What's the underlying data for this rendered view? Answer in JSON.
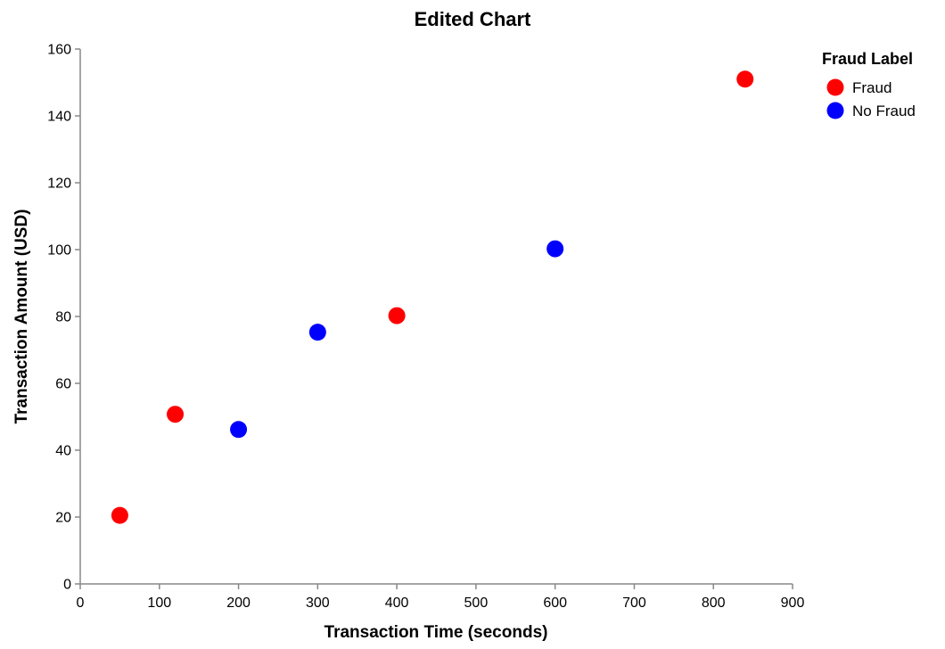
{
  "chart_data": {
    "type": "scatter",
    "title": "Edited Chart",
    "xlabel": "Transaction Time (seconds)",
    "ylabel": "Transaction Amount (USD)",
    "xlim": [
      0,
      900
    ],
    "ylim": [
      0,
      160
    ],
    "xticks": [
      0,
      100,
      200,
      300,
      400,
      500,
      600,
      700,
      800,
      900
    ],
    "yticks": [
      0,
      20,
      40,
      60,
      80,
      100,
      120,
      140,
      160
    ],
    "grid": false,
    "legend": {
      "title": "Fraud Label",
      "placement": "top-right",
      "entries": [
        {
          "name": "Fraud",
          "color": "#ff0000"
        },
        {
          "name": "No Fraud",
          "color": "#0000ff"
        }
      ]
    },
    "series": [
      {
        "name": "Fraud",
        "color": "#ff0000",
        "points": [
          {
            "x": 50,
            "y": 20.5
          },
          {
            "x": 120,
            "y": 50.75
          },
          {
            "x": 400,
            "y": 80.25
          },
          {
            "x": 840,
            "y": 151
          }
        ]
      },
      {
        "name": "No Fraud",
        "color": "#0000ff",
        "points": [
          {
            "x": 200,
            "y": 46.2
          },
          {
            "x": 300,
            "y": 75.3
          },
          {
            "x": 600,
            "y": 100.25
          }
        ]
      }
    ]
  }
}
